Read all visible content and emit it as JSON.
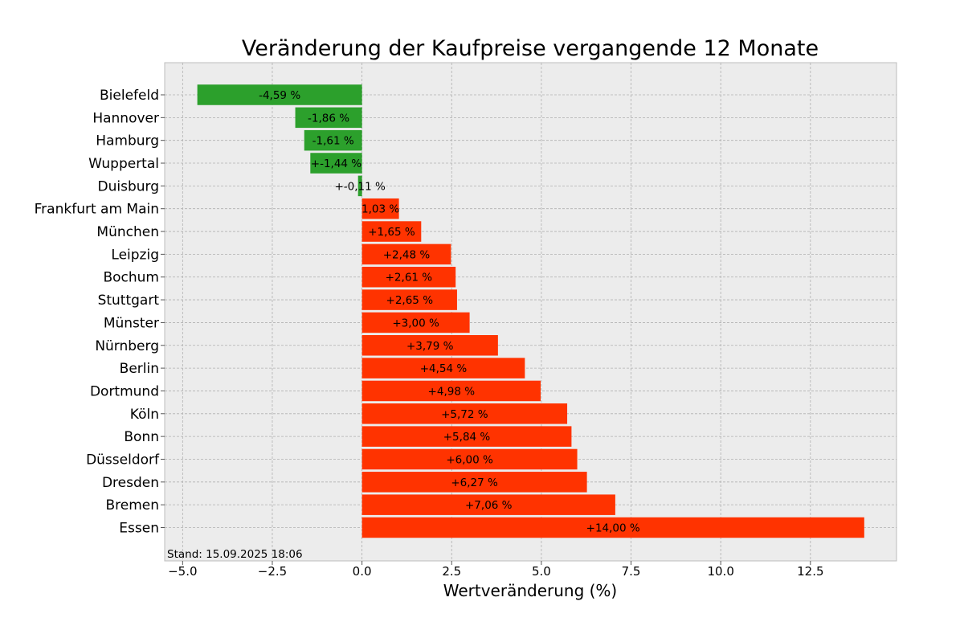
{
  "chart_data": {
    "type": "bar",
    "orientation": "horizontal",
    "title": "Veränderung der Kaufpreise vergangende 12 Monate",
    "xlabel": "Wertveränderung (%)",
    "ylabel": "",
    "footnote": "Stand: 15.09.2025 18:06",
    "xlim": [
      -5.5,
      14.9
    ],
    "xticks": [
      -5.0,
      -2.5,
      0.0,
      2.5,
      5.0,
      7.5,
      10.0,
      12.5
    ],
    "xtick_labels": [
      "−5.0",
      "−2.5",
      "0.0",
      "2.5",
      "5.0",
      "7.5",
      "10.0",
      "12.5"
    ],
    "grid": true,
    "colors": {
      "negative": "#2ca02c",
      "positive": "#ff3300",
      "plot_background": "#ececec",
      "grid": "#b0b0b0"
    },
    "bars": [
      {
        "category": "Bielefeld",
        "value": -4.59,
        "label": "-4,59 %"
      },
      {
        "category": "Hannover",
        "value": -1.86,
        "label": "-1,86 %"
      },
      {
        "category": "Hamburg",
        "value": -1.61,
        "label": "-1,61 %"
      },
      {
        "category": "Wuppertal",
        "value": -1.44,
        "label": "+-1,44 %"
      },
      {
        "category": "Duisburg",
        "value": -0.11,
        "label": "+-0,11 %"
      },
      {
        "category": "Frankfurt am Main",
        "value": 1.03,
        "label": "1,03 %"
      },
      {
        "category": "München",
        "value": 1.65,
        "label": "+1,65 %"
      },
      {
        "category": "Leipzig",
        "value": 2.48,
        "label": "+2,48 %"
      },
      {
        "category": "Bochum",
        "value": 2.61,
        "label": "+2,61 %"
      },
      {
        "category": "Stuttgart",
        "value": 2.65,
        "label": "+2,65 %"
      },
      {
        "category": "Münster",
        "value": 3.0,
        "label": "+3,00 %"
      },
      {
        "category": "Nürnberg",
        "value": 3.79,
        "label": "+3,79 %"
      },
      {
        "category": "Berlin",
        "value": 4.54,
        "label": "+4,54 %"
      },
      {
        "category": "Dortmund",
        "value": 4.98,
        "label": "+4,98 %"
      },
      {
        "category": "Köln",
        "value": 5.72,
        "label": "+5,72 %"
      },
      {
        "category": "Bonn",
        "value": 5.84,
        "label": "+5,84 %"
      },
      {
        "category": "Düsseldorf",
        "value": 6.0,
        "label": "+6,00 %"
      },
      {
        "category": "Dresden",
        "value": 6.27,
        "label": "+6,27 %"
      },
      {
        "category": "Bremen",
        "value": 7.06,
        "label": "+7,06 %"
      },
      {
        "category": "Essen",
        "value": 14.0,
        "label": "+14,00 %"
      }
    ]
  }
}
